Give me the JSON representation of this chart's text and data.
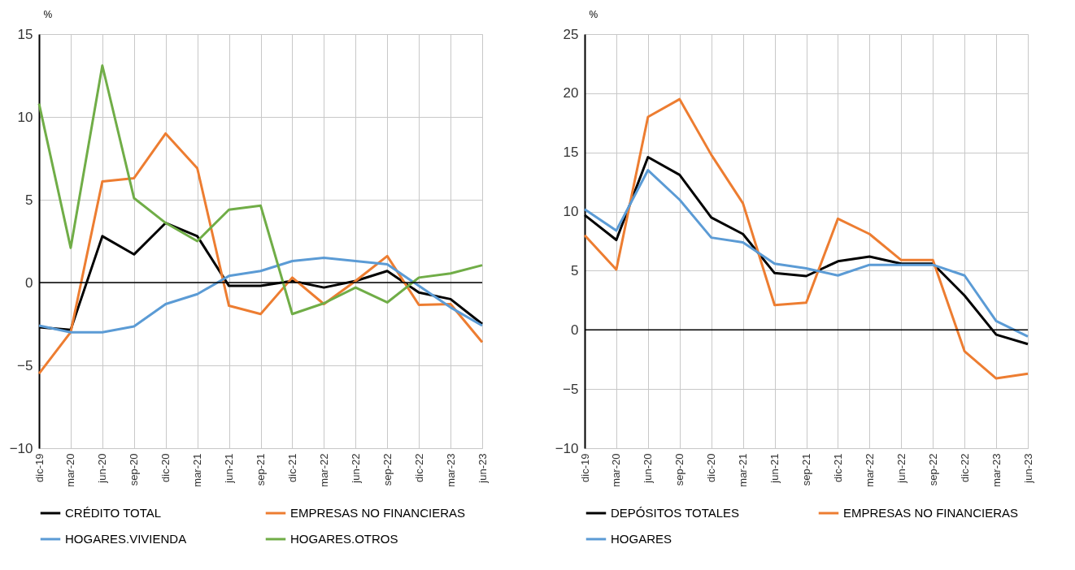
{
  "chart_data": [
    {
      "type": "line",
      "ylabel": "%",
      "categories": [
        "dic-19",
        "mar-20",
        "jun-20",
        "sep-20",
        "dic-20",
        "mar-21",
        "jun-21",
        "sep-21",
        "dic-21",
        "mar-22",
        "jun-22",
        "sep-22",
        "dic-22",
        "mar-23",
        "jun-23"
      ],
      "ylim": [
        -10,
        15
      ],
      "yticks": [
        -10,
        -5,
        0,
        5,
        10,
        15
      ],
      "grid": true,
      "legend": "bottom",
      "ref_lines": [
        {
          "axis": "y",
          "value": 0,
          "color": "#000000"
        }
      ],
      "series": [
        {
          "name": "CRÉDITO TOTAL",
          "color": "#000000",
          "values": [
            -2.7,
            -2.85,
            2.8,
            1.7,
            3.6,
            2.8,
            -0.2,
            -0.2,
            0.1,
            -0.3,
            0.1,
            0.7,
            -0.6,
            -1.0,
            -2.5
          ]
        },
        {
          "name": "EMPRESAS NO FINANCIERAS",
          "color": "#ed7d31",
          "values": [
            -5.5,
            -3.0,
            6.1,
            6.3,
            9.0,
            6.9,
            -1.4,
            -1.9,
            0.3,
            -1.3,
            0.1,
            1.6,
            -1.35,
            -1.3,
            -3.6
          ]
        },
        {
          "name": "HOGARES.VIVIENDA",
          "color": "#5b9bd5",
          "values": [
            -2.6,
            -3.0,
            -3.0,
            -2.65,
            -1.3,
            -0.7,
            0.4,
            0.7,
            1.3,
            1.5,
            1.3,
            1.1,
            -0.2,
            -1.5,
            -2.6
          ]
        },
        {
          "name": "HOGARES.OTROS",
          "color": "#70ad47",
          "values": [
            10.8,
            2.1,
            13.1,
            5.1,
            3.6,
            2.5,
            4.4,
            4.65,
            -1.9,
            -1.25,
            -0.3,
            -1.2,
            0.3,
            0.55,
            1.05
          ]
        }
      ]
    },
    {
      "type": "line",
      "ylabel": "%",
      "categories": [
        "dic-19",
        "mar-20",
        "jun-20",
        "sep-20",
        "dic-20",
        "mar-21",
        "jun-21",
        "sep-21",
        "dic-21",
        "mar-22",
        "jun-22",
        "sep-22",
        "dic-22",
        "mar-23",
        "jun-23"
      ],
      "ylim": [
        -10,
        25
      ],
      "yticks": [
        -10,
        -5,
        0,
        5,
        10,
        15,
        20,
        25
      ],
      "grid": true,
      "legend": "bottom",
      "ref_lines": [
        {
          "axis": "y",
          "value": 0,
          "color": "#000000"
        }
      ],
      "series": [
        {
          "name": "DEPÓSITOS TOTALES",
          "color": "#000000",
          "values": [
            9.7,
            7.6,
            14.6,
            13.1,
            9.5,
            8.1,
            4.8,
            4.55,
            5.8,
            6.2,
            5.6,
            5.6,
            2.9,
            -0.4,
            -1.2
          ]
        },
        {
          "name": "EMPRESAS NO FINANCIERAS",
          "color": "#ed7d31",
          "values": [
            8.0,
            5.1,
            18.0,
            19.5,
            14.8,
            10.7,
            2.1,
            2.3,
            9.4,
            8.1,
            5.9,
            5.9,
            -1.8,
            -4.1,
            -3.7
          ]
        },
        {
          "name": "HOGARES",
          "color": "#5b9bd5",
          "values": [
            10.2,
            8.4,
            13.5,
            11.0,
            7.8,
            7.4,
            5.6,
            5.2,
            4.6,
            5.5,
            5.5,
            5.5,
            4.6,
            0.75,
            -0.55
          ]
        }
      ]
    }
  ]
}
